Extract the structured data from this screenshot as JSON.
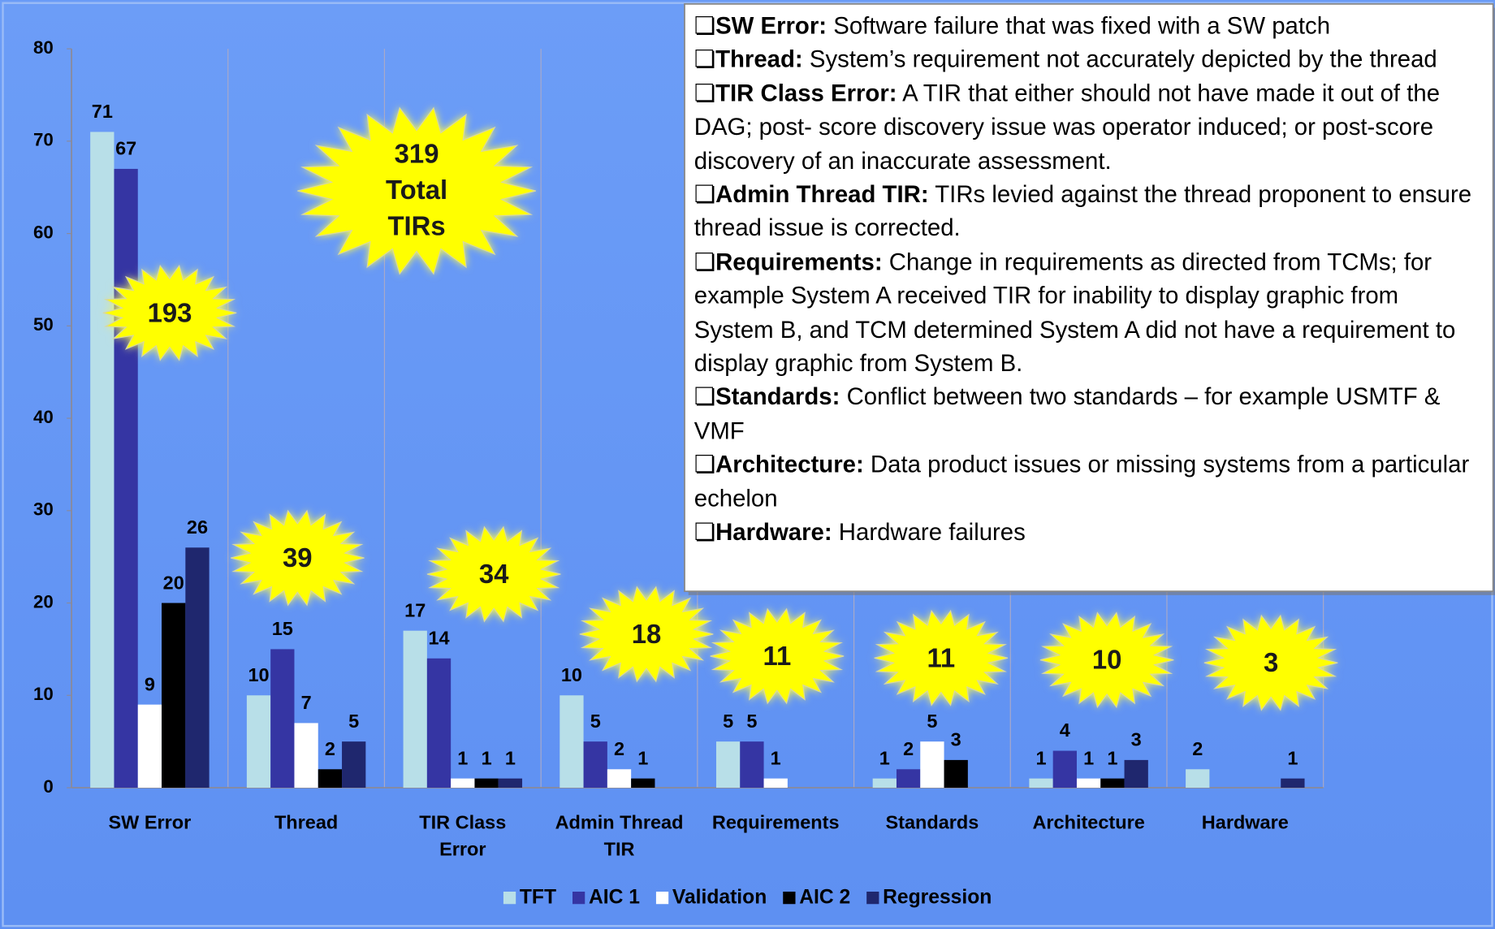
{
  "chart_data": {
    "type": "bar",
    "categories": [
      "SW Error",
      "Thread",
      "TIR Class Error",
      "Admin Thread TIR",
      "Requirements",
      "Standards",
      "Architecture",
      "Hardware"
    ],
    "series": [
      {
        "name": "TFT",
        "color": "#b8dfe8",
        "values": [
          71,
          10,
          17,
          10,
          5,
          1,
          1,
          2
        ]
      },
      {
        "name": "AIC 1",
        "color": "#3535a3",
        "values": [
          67,
          15,
          14,
          5,
          5,
          2,
          4,
          null
        ]
      },
      {
        "name": "Validation",
        "color": "#ffffff",
        "values": [
          9,
          7,
          1,
          2,
          1,
          5,
          1,
          null
        ]
      },
      {
        "name": "AIC 2",
        "color": "#000000",
        "values": [
          20,
          2,
          1,
          1,
          null,
          3,
          1,
          null
        ]
      },
      {
        "name": "Regression",
        "color": "#1f276e",
        "values": [
          26,
          5,
          1,
          null,
          null,
          null,
          3,
          1
        ]
      }
    ],
    "category_totals": [
      193,
      39,
      34,
      18,
      11,
      11,
      10,
      3
    ],
    "grand_total": [
      "319",
      "Total",
      "TIRs"
    ],
    "ylim": [
      0,
      80
    ],
    "yticks": [
      0,
      10,
      20,
      30,
      40,
      50,
      60,
      70,
      80
    ],
    "grid": false,
    "legend": "bottom",
    "definitions": [
      {
        "term": "SW Error:",
        "text": "Software failure that was fixed with a SW patch"
      },
      {
        "term": "Thread:",
        "text": "System’s requirement not accurately depicted by the thread"
      },
      {
        "term": "TIR Class Error:",
        "text": "A TIR that either should not have made it out of the DAG; post- score discovery issue was operator induced; or post-score discovery of an inaccurate assessment."
      },
      {
        "term": "Admin Thread TIR:",
        "text": "TIRs levied against the thread proponent to ensure thread issue is corrected."
      },
      {
        "term": "Requirements:",
        "text": "Change in requirements as directed from TCMs; for example System A received TIR for inability to display graphic from System B, and TCM determined System A did not have a requirement to display graphic from System B."
      },
      {
        "term": "Standards:",
        "text": "Conflict between two standards – for example USMTF & VMF"
      },
      {
        "term": "Architecture:",
        "text": "Data product issues or missing systems from a particular echelon"
      },
      {
        "term": "Hardware:",
        "text": "Hardware failures"
      }
    ]
  }
}
